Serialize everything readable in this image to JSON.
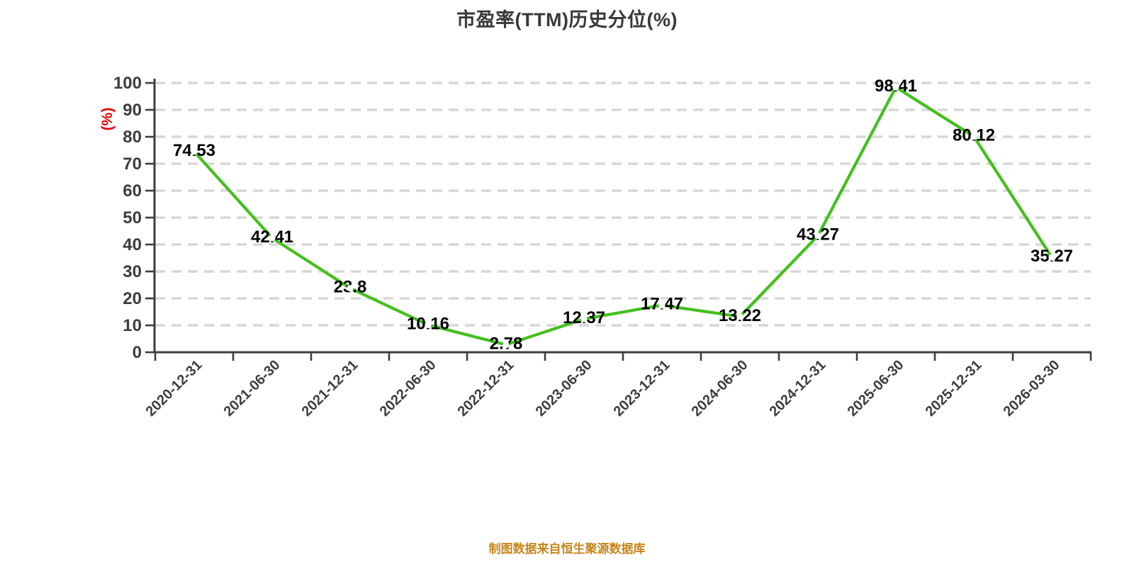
{
  "title": "市盈率(TTM)历史分位(%)",
  "footer": "制图数据来自恒生聚源数据库",
  "y_axis": {
    "unit": "(%)",
    "tick_labels": [
      "0",
      "10",
      "20",
      "30",
      "40",
      "50",
      "60",
      "70",
      "80",
      "90",
      "100"
    ]
  },
  "chart_data": {
    "type": "line",
    "title": "市盈率(TTM)历史分位(%)",
    "categories": [
      "2020-12-31",
      "2021-06-30",
      "2021-12-31",
      "2022-06-30",
      "2022-12-31",
      "2023-06-30",
      "2023-12-31",
      "2024-06-30",
      "2024-12-31",
      "2025-06-30",
      "2025-12-31",
      "2026-03-30"
    ],
    "values": [
      74.53,
      42.41,
      23.8,
      10.16,
      2.78,
      12.37,
      17.47,
      13.22,
      43.27,
      98.41,
      80.12,
      35.27
    ],
    "point_labels": [
      "74.53",
      "42.41",
      "23.8",
      "10.16",
      "2.78",
      "12.37",
      "17.47",
      "13.22",
      "43.27",
      "98.41",
      "80.12",
      "35.27"
    ],
    "xlabel": "",
    "ylabel": "(%)",
    "ylim": [
      0,
      100
    ],
    "y_step": 10,
    "grid": true,
    "grid_style": "dashed",
    "legend_position": "none",
    "footer": "制图数据来自恒生聚源数据库"
  },
  "colors": {
    "line": "#43c01c",
    "marker_fill": "#ffffff",
    "grid": "#d7d7d7",
    "axis": "#3d3d3d",
    "tick_label": "#3d3d3d",
    "title_text": "#383838",
    "value_label": "#000000",
    "unit_label": "#e60000",
    "footer_text": "#c6861c"
  }
}
